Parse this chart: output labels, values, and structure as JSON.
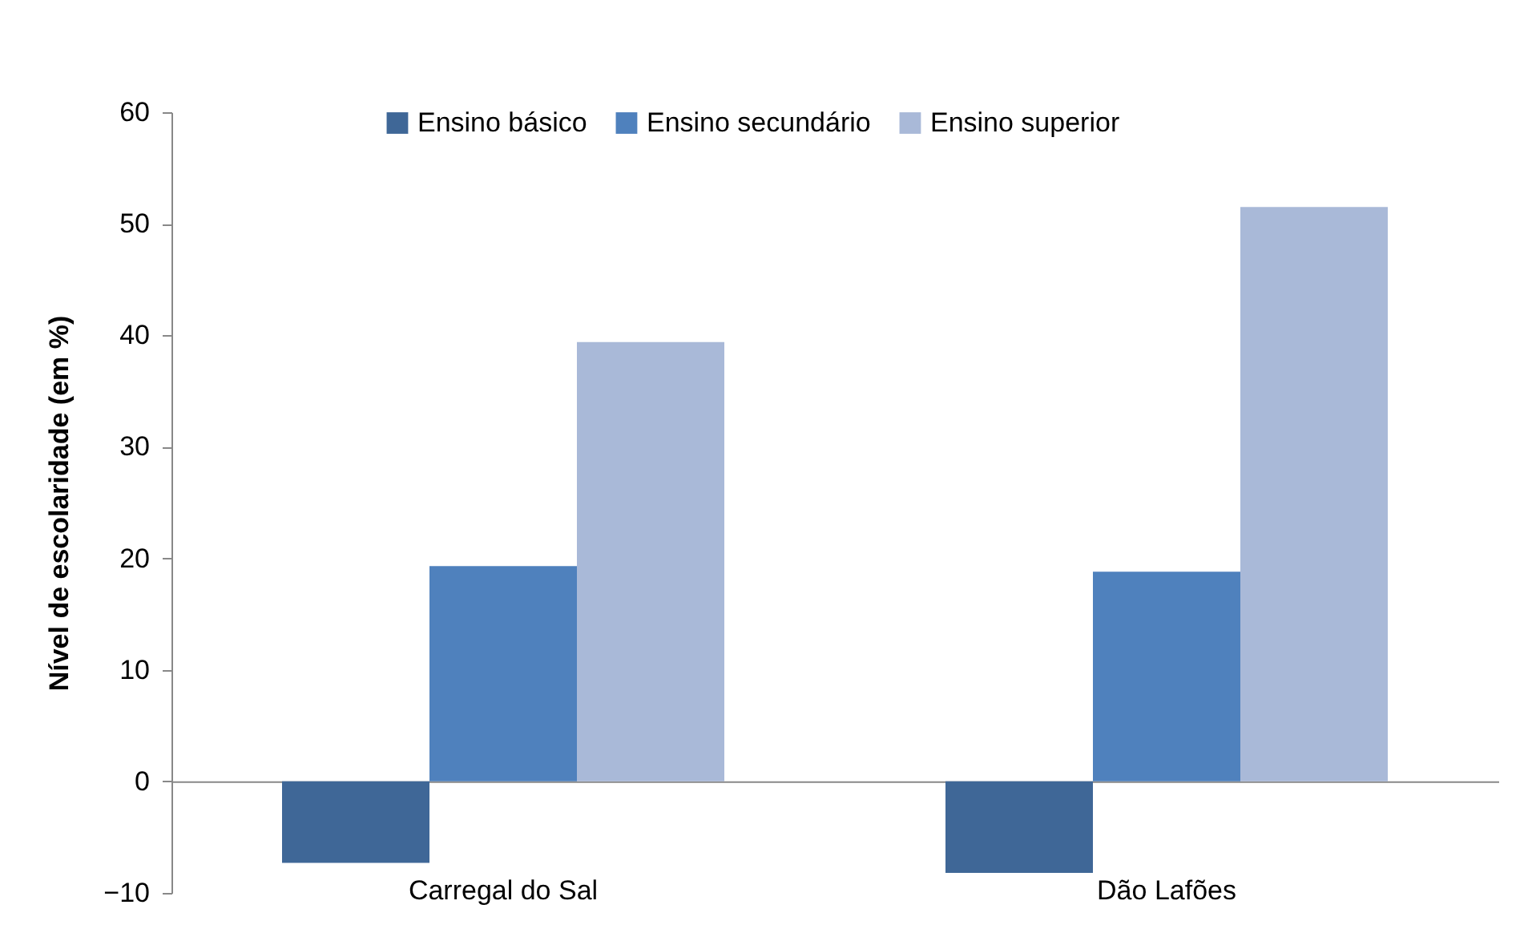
{
  "chart_data": {
    "type": "bar",
    "ylabel": "Nível de escolaridade (em %)",
    "categories": [
      "Carregal do Sal",
      "Dão Lafões"
    ],
    "series": [
      {
        "name": "Ensino básico",
        "color": "#3f6797",
        "values": [
          -7.3,
          -8.2
        ]
      },
      {
        "name": "Ensino secundário",
        "color": "#4f81bd",
        "values": [
          19.3,
          18.8
        ]
      },
      {
        "name": "Ensino superior",
        "color": "#a9b9d8",
        "values": [
          39.4,
          51.5
        ]
      }
    ],
    "ylim": [
      -10,
      60
    ],
    "yticks": [
      -10,
      0,
      10,
      20,
      30,
      40,
      50,
      60
    ],
    "legend": "top"
  }
}
